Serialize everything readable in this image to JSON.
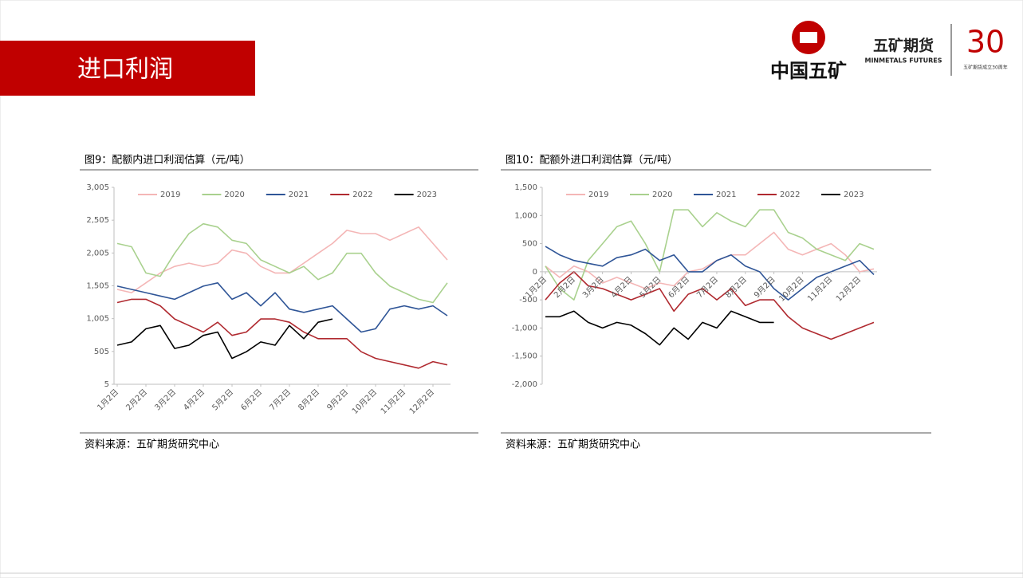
{
  "header": {
    "title": "进口利润"
  },
  "logo": {
    "company": "中国五矿",
    "brand": "五矿期货",
    "brand_en": "MINMETALS FUTURES",
    "anniversary": "30",
    "anniversary_text": "五矿期货成立30周年"
  },
  "chart_data": [
    {
      "type": "line",
      "title": "图9：配额内进口利润估算（元/吨）",
      "source": "资料来源：五矿期货研究中心",
      "categories": [
        "1月2日",
        null,
        "2月2日",
        null,
        "3月2日",
        null,
        "4月2日",
        null,
        "5月2日",
        null,
        "6月2日",
        null,
        "7月2日",
        null,
        "8月2日",
        null,
        "9月2日",
        null,
        "10月2日",
        null,
        "11月2日",
        null,
        "12月2日",
        null
      ],
      "ylim": [
        5,
        3005
      ],
      "yticks": [
        5,
        505,
        {
          "value": 1005,
          "label": "1,005"
        },
        {
          "value": 1505,
          "label": "1,505"
        },
        {
          "value": 2005,
          "label": "2,005"
        },
        {
          "value": 2505,
          "label": "2,505"
        },
        {
          "value": 3005,
          "label": "3,005"
        }
      ],
      "grid": false,
      "series": [
        {
          "name": "2019",
          "color": "#f4b6b6",
          "values": [
            1450,
            1400,
            1550,
            1700,
            1800,
            1850,
            1800,
            1850,
            2050,
            2000,
            1800,
            1700,
            1700,
            1850,
            2000,
            2150,
            2350,
            2300,
            2300,
            2200,
            2300,
            2400,
            2150,
            1900
          ]
        },
        {
          "name": "2020",
          "color": "#a9d18e",
          "values": [
            2150,
            2100,
            1700,
            1650,
            2000,
            2300,
            2450,
            2400,
            2200,
            2150,
            1900,
            1800,
            1700,
            1800,
            1600,
            1700,
            2000,
            2000,
            1700,
            1500,
            1400,
            1300,
            1250,
            1550
          ]
        },
        {
          "name": "2021",
          "color": "#2f5597",
          "values": [
            1500,
            1450,
            1400,
            1350,
            1300,
            1400,
            1500,
            1550,
            1300,
            1400,
            1200,
            1400,
            1150,
            1100,
            1150,
            1200,
            1000,
            800,
            850,
            1150,
            1200,
            1150,
            1200,
            1050
          ]
        },
        {
          "name": "2022",
          "color": "#b02a30",
          "values": [
            1250,
            1300,
            1300,
            1200,
            1000,
            900,
            800,
            950,
            750,
            800,
            1000,
            1000,
            950,
            800,
            700,
            700,
            700,
            500,
            400,
            350,
            300,
            250,
            350,
            300
          ]
        },
        {
          "name": "2023",
          "color": "#000000",
          "values": [
            600,
            650,
            850,
            900,
            550,
            600,
            750,
            800,
            400,
            500,
            650,
            600,
            900,
            700,
            950,
            1000,
            null,
            null,
            null,
            null,
            null,
            null,
            null,
            null
          ]
        }
      ]
    },
    {
      "type": "line",
      "title": "图10：配额外进口利润估算（元/吨）",
      "source": "资料来源：五矿期货研究中心",
      "categories": [
        "1月2日",
        null,
        "2月2日",
        null,
        "3月2日",
        null,
        "4月2日",
        null,
        "5月2日",
        null,
        "6月2日",
        null,
        "7月2日",
        null,
        "8月2日",
        null,
        "9月2日",
        null,
        "10月2日",
        null,
        "11月2日",
        null,
        "12月2日",
        null
      ],
      "ylim": [
        -2000,
        1500
      ],
      "yticks": [
        {
          "value": -2000,
          "label": "-2,000"
        },
        {
          "value": -1500,
          "label": "-1,500"
        },
        {
          "value": -1000,
          "label": "-1,000"
        },
        -500,
        0,
        500,
        {
          "value": 1000,
          "label": "1,000"
        },
        {
          "value": 1500,
          "label": "1,500"
        }
      ],
      "grid": false,
      "series": [
        {
          "name": "2019",
          "color": "#f4b6b6",
          "values": [
            100,
            -100,
            100,
            0,
            -200,
            -100,
            -200,
            -300,
            -200,
            -250,
            0,
            50,
            200,
            300,
            300,
            500,
            700,
            400,
            300,
            400,
            500,
            300,
            0,
            50
          ]
        },
        {
          "name": "2020",
          "color": "#a9d18e",
          "values": [
            100,
            -300,
            -500,
            200,
            500,
            800,
            900,
            500,
            0,
            1100,
            1100,
            800,
            1050,
            900,
            800,
            1100,
            1100,
            700,
            600,
            400,
            300,
            200,
            500,
            400
          ]
        },
        {
          "name": "2021",
          "color": "#2f5597",
          "values": [
            450,
            300,
            200,
            150,
            100,
            250,
            300,
            400,
            200,
            300,
            0,
            0,
            200,
            300,
            100,
            0,
            -300,
            -500,
            -300,
            -100,
            0,
            100,
            200,
            -50
          ]
        },
        {
          "name": "2022",
          "color": "#b02a30",
          "values": [
            -500,
            -200,
            0,
            -250,
            -300,
            -400,
            -500,
            -400,
            -300,
            -700,
            -400,
            -300,
            -500,
            -300,
            -600,
            -500,
            -500,
            -800,
            -1000,
            -1100,
            -1200,
            -1100,
            -1000,
            -900
          ]
        },
        {
          "name": "2023",
          "color": "#000000",
          "values": [
            -800,
            -800,
            -700,
            -900,
            -1000,
            -900,
            -950,
            -1100,
            -1300,
            -1000,
            -1200,
            -900,
            -1000,
            -700,
            -800,
            -900,
            -900,
            null,
            null,
            null,
            null,
            null,
            null,
            null
          ]
        }
      ]
    }
  ]
}
